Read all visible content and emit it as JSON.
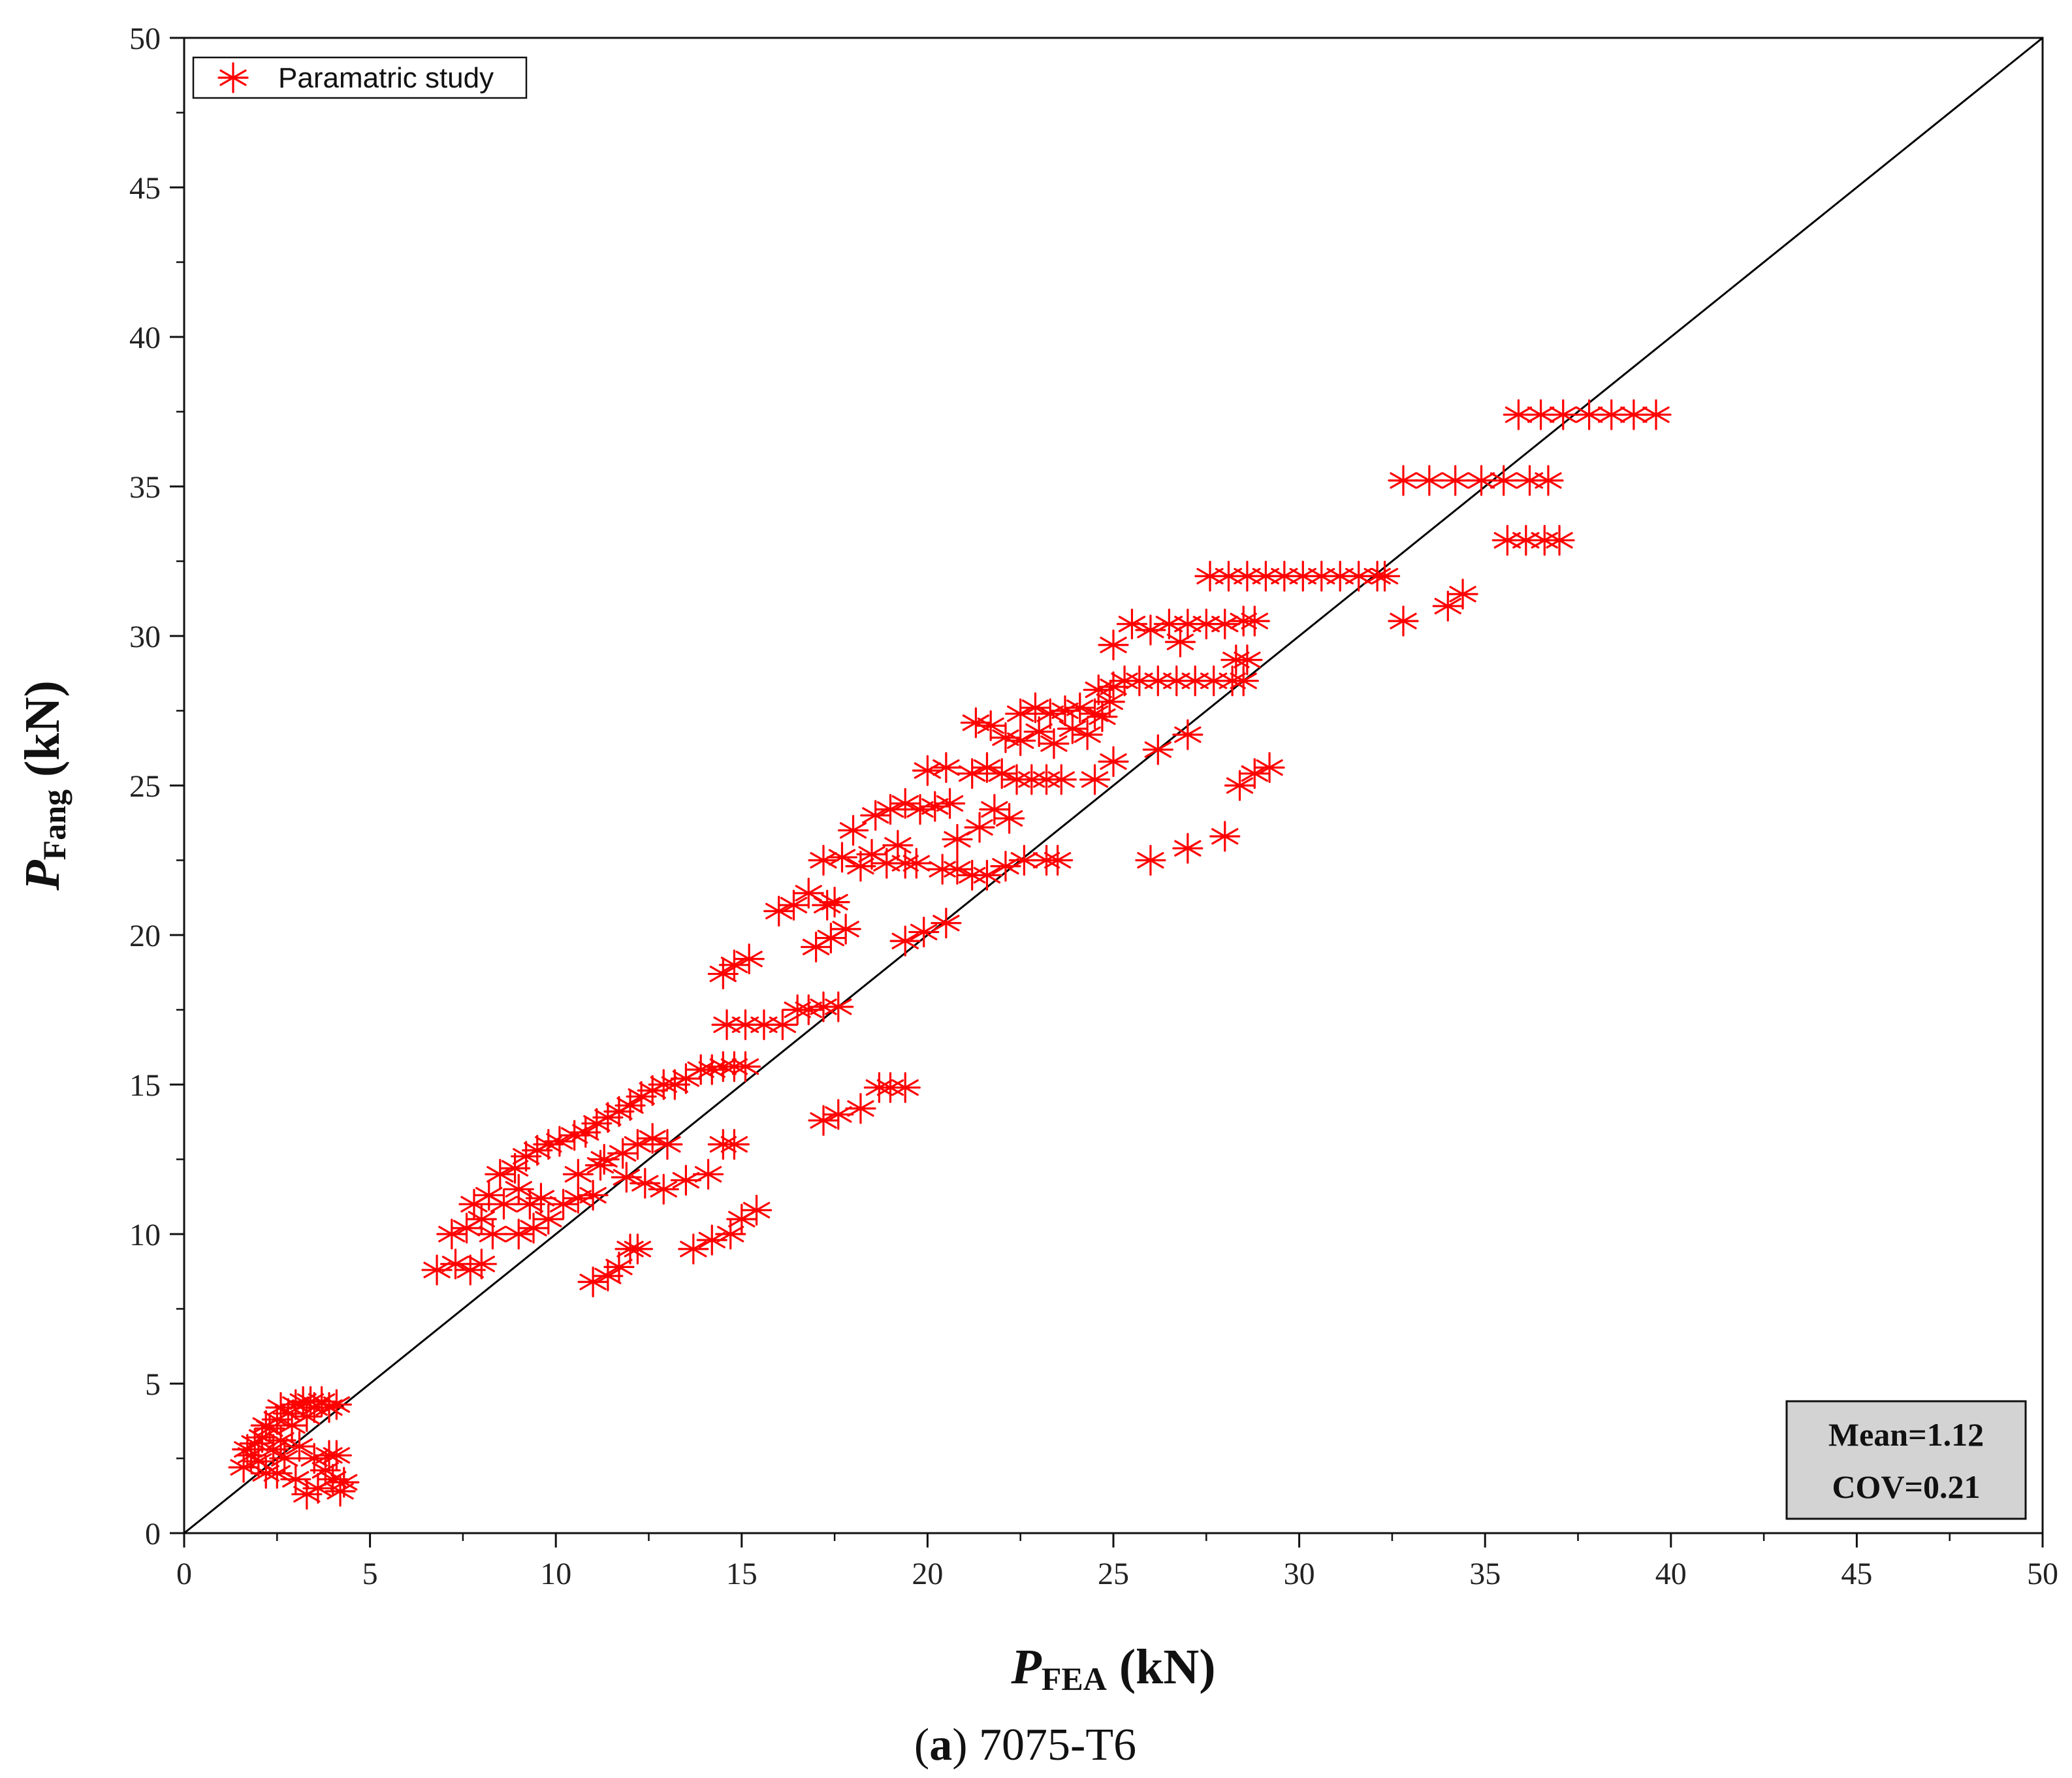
{
  "chart_data": {
    "type": "scatter",
    "title": "",
    "caption_prefix": "(",
    "caption_letter": "a",
    "caption_suffix": ") 7075-T6",
    "xlabel_main": "P",
    "xlabel_sub": "FEA",
    "xlabel_unit": " (kN)",
    "ylabel_main": "P",
    "ylabel_sub": "Fang",
    "ylabel_unit": " (kN)",
    "xlim": [
      0,
      50
    ],
    "ylim": [
      0,
      50
    ],
    "xticks": [
      "0",
      "5",
      "10",
      "15",
      "20",
      "25",
      "30",
      "35",
      "40",
      "45",
      "50"
    ],
    "yticks": [
      "0",
      "5",
      "10",
      "15",
      "20",
      "25",
      "30",
      "35",
      "40",
      "45",
      "50"
    ],
    "grid": false,
    "legend": {
      "position": "top-left",
      "entries": [
        "Paramatric study"
      ]
    },
    "stats": {
      "mean": "Mean=1.12",
      "cov": "COV=0.21",
      "position": "bottom-right"
    },
    "reference_line": {
      "label": "y = x",
      "from": [
        0,
        0
      ],
      "to": [
        50,
        50
      ]
    },
    "marker_color": "#ff0000",
    "line_color": "#000000",
    "series": [
      {
        "name": "Paramatric study",
        "points": [
          [
            1.6,
            2.2
          ],
          [
            1.8,
            2.6
          ],
          [
            1.9,
            3.0
          ],
          [
            2.0,
            2.4
          ],
          [
            2.1,
            3.2
          ],
          [
            2.2,
            2.0
          ],
          [
            2.3,
            3.5
          ],
          [
            2.4,
            2.8
          ],
          [
            2.5,
            3.8
          ],
          [
            2.6,
            3.1
          ],
          [
            2.7,
            2.5
          ],
          [
            2.8,
            4.0
          ],
          [
            2.9,
            3.6
          ],
          [
            3.0,
            4.3
          ],
          [
            3.1,
            2.9
          ],
          [
            3.2,
            4.4
          ],
          [
            3.3,
            3.9
          ],
          [
            3.4,
            4.4
          ],
          [
            3.5,
            4.2
          ],
          [
            3.7,
            4.4
          ],
          [
            3.9,
            4.2
          ],
          [
            4.1,
            4.3
          ],
          [
            2.5,
            2.0
          ],
          [
            3.0,
            1.8
          ],
          [
            3.3,
            1.3
          ],
          [
            3.6,
            1.5
          ],
          [
            3.8,
            2.1
          ],
          [
            4.0,
            1.8
          ],
          [
            4.2,
            1.4
          ],
          [
            4.3,
            1.7
          ],
          [
            3.5,
            2.5
          ],
          [
            3.9,
            2.6
          ],
          [
            4.1,
            2.6
          ],
          [
            1.7,
            2.8
          ],
          [
            2.2,
            3.6
          ],
          [
            2.6,
            4.2
          ],
          [
            6.8,
            8.8
          ],
          [
            7.3,
            9.0
          ],
          [
            7.7,
            8.8
          ],
          [
            8.0,
            9.0
          ],
          [
            7.2,
            10.0
          ],
          [
            7.6,
            10.2
          ],
          [
            8.0,
            10.5
          ],
          [
            8.3,
            10.0
          ],
          [
            7.8,
            11.0
          ],
          [
            8.2,
            11.3
          ],
          [
            8.6,
            11.0
          ],
          [
            9.0,
            11.5
          ],
          [
            9.3,
            11.0
          ],
          [
            9.6,
            11.2
          ],
          [
            8.5,
            12.0
          ],
          [
            8.9,
            12.2
          ],
          [
            9.2,
            12.6
          ],
          [
            9.5,
            12.8
          ],
          [
            9.8,
            13.0
          ],
          [
            10.1,
            13.1
          ],
          [
            10.5,
            13.3
          ],
          [
            10.8,
            13.4
          ],
          [
            11.1,
            13.7
          ],
          [
            11.4,
            13.9
          ],
          [
            11.7,
            14.1
          ],
          [
            12.0,
            14.3
          ],
          [
            12.3,
            14.6
          ],
          [
            12.6,
            14.8
          ],
          [
            12.9,
            15.0
          ],
          [
            13.2,
            15.0
          ],
          [
            13.5,
            15.2
          ],
          [
            13.9,
            15.5
          ],
          [
            14.2,
            15.5
          ],
          [
            14.5,
            15.6
          ],
          [
            14.8,
            15.6
          ],
          [
            15.1,
            15.6
          ],
          [
            9.0,
            10.0
          ],
          [
            9.4,
            10.2
          ],
          [
            9.8,
            10.5
          ],
          [
            10.2,
            11.0
          ],
          [
            10.6,
            11.2
          ],
          [
            11.0,
            11.3
          ],
          [
            11.3,
            12.5
          ],
          [
            11.8,
            12.7
          ],
          [
            12.2,
            13.0
          ],
          [
            12.6,
            13.2
          ],
          [
            13.0,
            13.0
          ],
          [
            10.6,
            12.0
          ],
          [
            11.2,
            12.3
          ],
          [
            11.9,
            11.9
          ],
          [
            12.4,
            11.7
          ],
          [
            12.9,
            11.5
          ],
          [
            13.5,
            11.8
          ],
          [
            14.1,
            12.0
          ],
          [
            14.5,
            13.0
          ],
          [
            14.8,
            13.0
          ],
          [
            11.0,
            8.4
          ],
          [
            11.4,
            8.6
          ],
          [
            11.7,
            8.9
          ],
          [
            12.0,
            9.5
          ],
          [
            12.2,
            9.5
          ],
          [
            13.7,
            9.5
          ],
          [
            14.2,
            9.8
          ],
          [
            14.7,
            10.0
          ],
          [
            15.0,
            10.5
          ],
          [
            15.4,
            10.8
          ],
          [
            17.2,
            13.8
          ],
          [
            17.6,
            14.0
          ],
          [
            18.2,
            14.2
          ],
          [
            18.7,
            14.9
          ],
          [
            19.0,
            14.9
          ],
          [
            19.4,
            14.9
          ],
          [
            14.6,
            17.0
          ],
          [
            15.1,
            17.0
          ],
          [
            15.6,
            17.0
          ],
          [
            16.1,
            17.0
          ],
          [
            16.5,
            17.5
          ],
          [
            16.8,
            17.5
          ],
          [
            17.2,
            17.6
          ],
          [
            17.6,
            17.6
          ],
          [
            14.5,
            18.7
          ],
          [
            14.8,
            19.0
          ],
          [
            15.2,
            19.2
          ],
          [
            16.0,
            20.8
          ],
          [
            16.4,
            21.0
          ],
          [
            16.8,
            21.4
          ],
          [
            17.3,
            21.0
          ],
          [
            17.5,
            21.1
          ],
          [
            17.0,
            19.6
          ],
          [
            17.4,
            19.9
          ],
          [
            17.8,
            20.2
          ],
          [
            19.4,
            19.8
          ],
          [
            19.9,
            20.1
          ],
          [
            20.5,
            20.4
          ],
          [
            17.2,
            22.5
          ],
          [
            17.7,
            22.6
          ],
          [
            18.2,
            22.3
          ],
          [
            18.5,
            22.7
          ],
          [
            18.9,
            22.4
          ],
          [
            19.4,
            22.4
          ],
          [
            18.0,
            23.5
          ],
          [
            18.6,
            24.0
          ],
          [
            19.0,
            24.2
          ],
          [
            19.4,
            24.4
          ],
          [
            19.8,
            24.2
          ],
          [
            20.2,
            24.3
          ],
          [
            20.6,
            24.4
          ],
          [
            20.0,
            25.5
          ],
          [
            20.5,
            25.6
          ],
          [
            21.2,
            25.4
          ],
          [
            21.6,
            25.6
          ],
          [
            22.0,
            25.4
          ],
          [
            22.4,
            25.2
          ],
          [
            22.8,
            25.2
          ],
          [
            23.2,
            25.2
          ],
          [
            23.6,
            25.2
          ],
          [
            24.5,
            25.2
          ],
          [
            25.0,
            25.8
          ],
          [
            19.2,
            23.0
          ],
          [
            19.7,
            22.4
          ],
          [
            20.4,
            22.2
          ],
          [
            20.8,
            22.2
          ],
          [
            21.2,
            22.0
          ],
          [
            21.6,
            22.0
          ],
          [
            22.1,
            22.3
          ],
          [
            22.6,
            22.5
          ],
          [
            23.2,
            22.5
          ],
          [
            23.5,
            22.5
          ],
          [
            20.8,
            23.2
          ],
          [
            21.4,
            23.6
          ],
          [
            21.8,
            24.2
          ],
          [
            22.2,
            23.9
          ],
          [
            21.3,
            27.1
          ],
          [
            21.7,
            27.0
          ],
          [
            22.1,
            26.6
          ],
          [
            22.5,
            27.4
          ],
          [
            22.9,
            27.6
          ],
          [
            23.3,
            27.4
          ],
          [
            23.7,
            27.5
          ],
          [
            24.1,
            27.6
          ],
          [
            24.5,
            27.4
          ],
          [
            24.9,
            27.8
          ],
          [
            22.5,
            26.5
          ],
          [
            23.0,
            26.8
          ],
          [
            23.4,
            26.4
          ],
          [
            23.9,
            26.9
          ],
          [
            24.3,
            26.7
          ],
          [
            24.7,
            27.3
          ],
          [
            24.6,
            28.2
          ],
          [
            25.0,
            28.3
          ],
          [
            25.3,
            28.5
          ],
          [
            25.7,
            28.5
          ],
          [
            26.2,
            28.5
          ],
          [
            26.7,
            28.5
          ],
          [
            27.2,
            28.5
          ],
          [
            27.7,
            28.5
          ],
          [
            28.2,
            28.5
          ],
          [
            28.5,
            28.5
          ],
          [
            28.6,
            29.2
          ],
          [
            28.3,
            29.2
          ],
          [
            25.0,
            29.7
          ],
          [
            25.5,
            30.4
          ],
          [
            26.0,
            30.2
          ],
          [
            26.5,
            30.4
          ],
          [
            27.0,
            30.4
          ],
          [
            27.5,
            30.4
          ],
          [
            28.0,
            30.4
          ],
          [
            28.5,
            30.5
          ],
          [
            28.8,
            30.5
          ],
          [
            26.8,
            29.8
          ],
          [
            27.6,
            32.0
          ],
          [
            28.1,
            32.0
          ],
          [
            28.6,
            32.0
          ],
          [
            29.1,
            32.0
          ],
          [
            29.6,
            32.0
          ],
          [
            30.1,
            32.0
          ],
          [
            30.6,
            32.0
          ],
          [
            31.1,
            32.0
          ],
          [
            31.6,
            32.0
          ],
          [
            32.1,
            32.0
          ],
          [
            32.3,
            32.0
          ],
          [
            26.0,
            22.5
          ],
          [
            27.0,
            22.9
          ],
          [
            28.0,
            23.3
          ],
          [
            27.0,
            26.7
          ],
          [
            26.2,
            26.2
          ],
          [
            28.4,
            25.0
          ],
          [
            28.8,
            25.4
          ],
          [
            29.2,
            25.6
          ],
          [
            32.8,
            30.5
          ],
          [
            34.0,
            31.0
          ],
          [
            34.4,
            31.4
          ],
          [
            32.8,
            35.2
          ],
          [
            33.5,
            35.2
          ],
          [
            34.2,
            35.2
          ],
          [
            34.9,
            35.2
          ],
          [
            35.5,
            35.2
          ],
          [
            36.2,
            35.2
          ],
          [
            36.7,
            35.2
          ],
          [
            35.6,
            33.2
          ],
          [
            36.1,
            33.2
          ],
          [
            36.6,
            33.2
          ],
          [
            37.0,
            33.2
          ],
          [
            35.9,
            37.4
          ],
          [
            36.5,
            37.4
          ],
          [
            37.1,
            37.4
          ],
          [
            37.8,
            37.4
          ],
          [
            38.4,
            37.4
          ],
          [
            39.0,
            37.4
          ],
          [
            39.6,
            37.4
          ]
        ]
      }
    ]
  }
}
